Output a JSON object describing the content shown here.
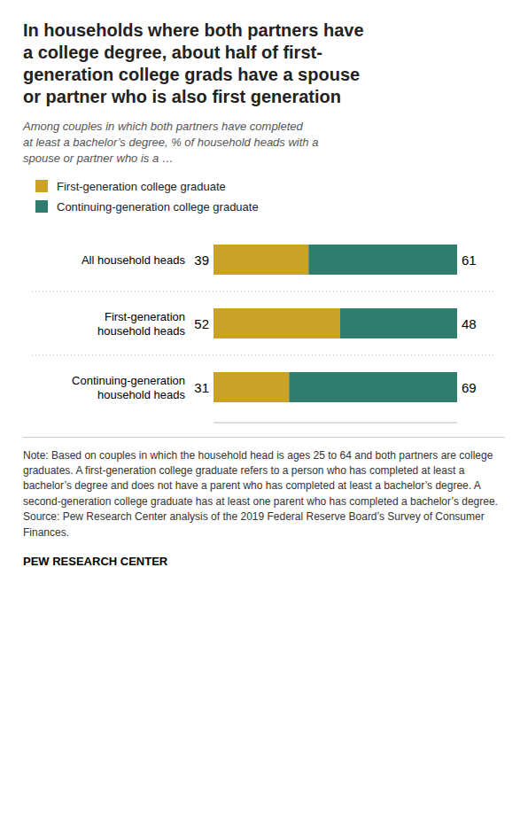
{
  "chart_data": {
    "type": "bar",
    "orientation": "horizontal",
    "stacked": true,
    "data_labels": true,
    "tick_labels": false,
    "title": "In households where both partners have\na college degree, about half of first-\ngeneration college grads have a spouse\nor partner who is also first generation",
    "subtitle": "Among couples in which both partners have completed\nat least a bachelor’s degree, % of household heads with a\nspouse or partner who is a …",
    "categories": [
      "All household heads",
      "First-generation\nhousehold heads",
      "Continuing-generation\nhousehold heads"
    ],
    "series": [
      {
        "name": "First-generation college graduate",
        "color": "#C9A227",
        "values": [
          39,
          52,
          31
        ]
      },
      {
        "name": "Continuing-generation college graduate",
        "color": "#2E7D6E",
        "values": [
          61,
          48,
          69
        ]
      }
    ],
    "xlim": [
      0,
      100
    ],
    "annotations": [
      "Note: Based on couples in which the household head is ages 25 to 64 and both partners are college graduates. A first-generation college graduate refers to a person who has completed at least a bachelor’s degree and does not have a parent who has completed at least a bachelor’s degree. A second-generation college graduate has at least one parent who has completed a bachelor’s degree. Source: Pew Research Center analysis of the 2019 Federal Reserve Board’s Survey of Consumer Finances.",
      "PEW RESEARCH CENTER"
    ]
  }
}
